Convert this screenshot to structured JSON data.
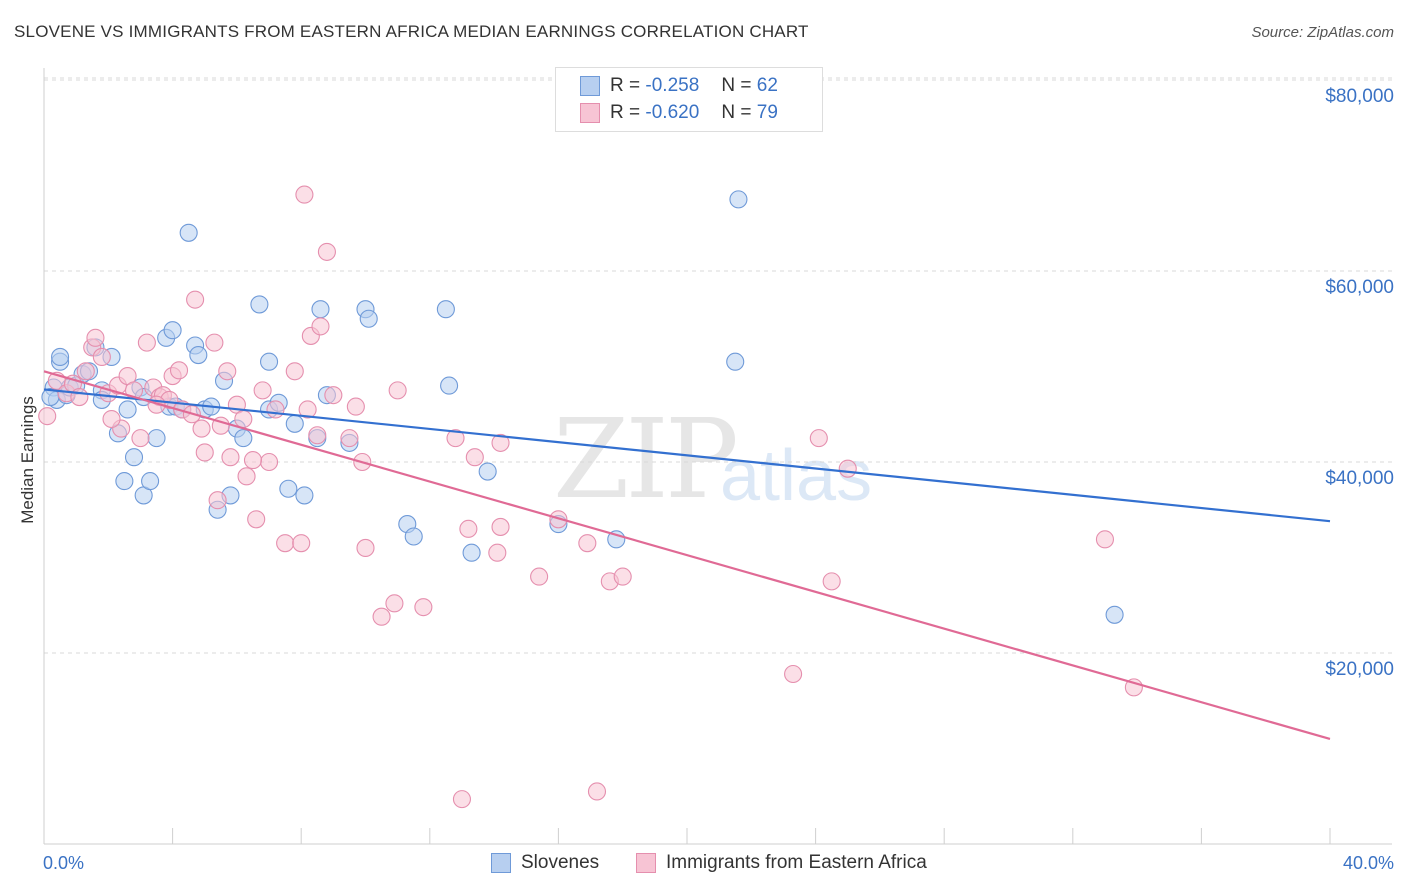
{
  "header": {
    "title": "SLOVENE VS IMMIGRANTS FROM EASTERN AFRICA MEDIAN EARNINGS CORRELATION CHART",
    "source": "Source: ZipAtlas.com"
  },
  "watermark": {
    "zip": "ZIP",
    "atlas": "atlas"
  },
  "legend": {
    "row1": {
      "r_label": "R =",
      "r_value": "-0.258",
      "n_label": "N =",
      "n_value": "62"
    },
    "row2": {
      "r_label": "R =",
      "r_value": "-0.620",
      "n_label": "N =",
      "n_value": "79"
    }
  },
  "colors": {
    "blue": "#3a72c4",
    "blue_fill": "#b7cff0",
    "blue_line": "#3370d0",
    "pink": "#e0709a",
    "pink_fill": "#f7c4d4",
    "pink_line": "#e06a95",
    "grid": "#d8d8d8"
  },
  "chart_data": {
    "type": "scatter",
    "title": "SLOVENE VS IMMIGRANTS FROM EASTERN AFRICA MEDIAN EARNINGS CORRELATION CHART",
    "xlabel": "",
    "ylabel": "Median Earnings",
    "xlim": [
      0,
      40
    ],
    "ylim": [
      0,
      82000
    ],
    "x_tick_labels": [
      "0.0%",
      "40.0%"
    ],
    "y_ticks": [
      20000,
      40000,
      60000,
      80000
    ],
    "y_tick_labels": [
      "$20,000",
      "$40,000",
      "$60,000",
      "$80,000"
    ],
    "grid": true,
    "legend_position": "bottom",
    "series": [
      {
        "name": "Slovenes",
        "color": "#3a72c4",
        "trend": {
          "x": [
            0,
            40
          ],
          "y": [
            47600,
            33800
          ]
        },
        "points": [
          [
            0.3,
            47800
          ],
          [
            0.4,
            46500
          ],
          [
            0.5,
            50500
          ],
          [
            0.5,
            51000
          ],
          [
            0.7,
            47000
          ],
          [
            0.8,
            47800
          ],
          [
            1.0,
            48000
          ],
          [
            1.2,
            49200
          ],
          [
            1.4,
            49500
          ],
          [
            1.6,
            52000
          ],
          [
            1.8,
            47500
          ],
          [
            1.8,
            46500
          ],
          [
            2.1,
            51000
          ],
          [
            2.3,
            43000
          ],
          [
            2.5,
            38000
          ],
          [
            2.6,
            45500
          ],
          [
            2.8,
            40500
          ],
          [
            3.0,
            47800
          ],
          [
            3.1,
            46800
          ],
          [
            3.1,
            36500
          ],
          [
            3.3,
            38000
          ],
          [
            3.5,
            42500
          ],
          [
            3.8,
            53000
          ],
          [
            3.9,
            45800
          ],
          [
            4.0,
            53800
          ],
          [
            4.1,
            45800
          ],
          [
            4.3,
            45500
          ],
          [
            4.5,
            64000
          ],
          [
            4.7,
            52200
          ],
          [
            4.8,
            51200
          ],
          [
            5.0,
            45500
          ],
          [
            5.2,
            45800
          ],
          [
            5.4,
            35000
          ],
          [
            5.6,
            48500
          ],
          [
            5.8,
            36500
          ],
          [
            6.0,
            43500
          ],
          [
            6.2,
            42500
          ],
          [
            6.7,
            56500
          ],
          [
            7.0,
            45500
          ],
          [
            7.3,
            46200
          ],
          [
            7.0,
            50500
          ],
          [
            7.6,
            37200
          ],
          [
            7.8,
            44000
          ],
          [
            8.1,
            36500
          ],
          [
            8.5,
            42500
          ],
          [
            8.6,
            56000
          ],
          [
            8.8,
            47000
          ],
          [
            9.5,
            42000
          ],
          [
            10.0,
            56000
          ],
          [
            10.1,
            55000
          ],
          [
            11.3,
            33500
          ],
          [
            11.5,
            32200
          ],
          [
            12.5,
            56000
          ],
          [
            12.6,
            48000
          ],
          [
            13.3,
            30500
          ],
          [
            13.8,
            39000
          ],
          [
            16.0,
            33500
          ],
          [
            17.8,
            31900
          ],
          [
            21.5,
            50500
          ],
          [
            21.6,
            67500
          ],
          [
            33.3,
            24000
          ],
          [
            0.2,
            46800
          ]
        ]
      },
      {
        "name": "Immigrants from Eastern Africa",
        "color": "#e0709a",
        "trend": {
          "x": [
            0,
            40
          ],
          "y": [
            49500,
            11000
          ]
        },
        "points": [
          [
            0.1,
            44800
          ],
          [
            0.4,
            48500
          ],
          [
            0.7,
            47200
          ],
          [
            0.9,
            48200
          ],
          [
            1.3,
            49500
          ],
          [
            1.5,
            52000
          ],
          [
            1.6,
            53000
          ],
          [
            1.8,
            51000
          ],
          [
            2.0,
            47200
          ],
          [
            2.3,
            48000
          ],
          [
            2.4,
            43500
          ],
          [
            2.6,
            49000
          ],
          [
            2.8,
            47500
          ],
          [
            3.0,
            42500
          ],
          [
            3.2,
            52500
          ],
          [
            3.4,
            47800
          ],
          [
            3.6,
            46800
          ],
          [
            3.7,
            47000
          ],
          [
            3.9,
            46500
          ],
          [
            4.0,
            49000
          ],
          [
            4.2,
            49600
          ],
          [
            4.3,
            45500
          ],
          [
            4.6,
            45000
          ],
          [
            4.7,
            57000
          ],
          [
            4.9,
            43500
          ],
          [
            5.0,
            41000
          ],
          [
            5.3,
            52500
          ],
          [
            5.4,
            36000
          ],
          [
            5.7,
            49500
          ],
          [
            5.8,
            40500
          ],
          [
            6.0,
            46000
          ],
          [
            6.2,
            44500
          ],
          [
            6.3,
            38500
          ],
          [
            6.6,
            34000
          ],
          [
            6.8,
            47500
          ],
          [
            7.0,
            40000
          ],
          [
            7.2,
            45500
          ],
          [
            7.5,
            31500
          ],
          [
            7.8,
            49500
          ],
          [
            8.0,
            31500
          ],
          [
            8.1,
            68000
          ],
          [
            8.2,
            45500
          ],
          [
            8.3,
            53200
          ],
          [
            8.6,
            54200
          ],
          [
            8.8,
            62000
          ],
          [
            9.0,
            47000
          ],
          [
            9.5,
            42500
          ],
          [
            9.7,
            45800
          ],
          [
            9.9,
            40000
          ],
          [
            10.0,
            31000
          ],
          [
            10.5,
            23800
          ],
          [
            10.9,
            25200
          ],
          [
            11.0,
            47500
          ],
          [
            11.8,
            24800
          ],
          [
            12.8,
            42500
          ],
          [
            13.0,
            4700
          ],
          [
            13.2,
            33000
          ],
          [
            13.4,
            40500
          ],
          [
            14.1,
            30500
          ],
          [
            14.2,
            42000
          ],
          [
            14.2,
            33200
          ],
          [
            15.4,
            28000
          ],
          [
            16.0,
            34000
          ],
          [
            16.9,
            31500
          ],
          [
            17.2,
            5500
          ],
          [
            17.6,
            27500
          ],
          [
            18.0,
            28000
          ],
          [
            23.3,
            17800
          ],
          [
            24.1,
            42500
          ],
          [
            24.5,
            27500
          ],
          [
            25.0,
            39300
          ],
          [
            33.0,
            31900
          ],
          [
            33.9,
            16400
          ],
          [
            8.5,
            42800
          ],
          [
            6.5,
            40200
          ],
          [
            3.5,
            46000
          ],
          [
            2.1,
            44500
          ],
          [
            1.1,
            46800
          ],
          [
            5.5,
            43800
          ]
        ]
      }
    ]
  },
  "bottom_legend": {
    "series1": "Slovenes",
    "series2": "Immigrants from Eastern Africa"
  }
}
